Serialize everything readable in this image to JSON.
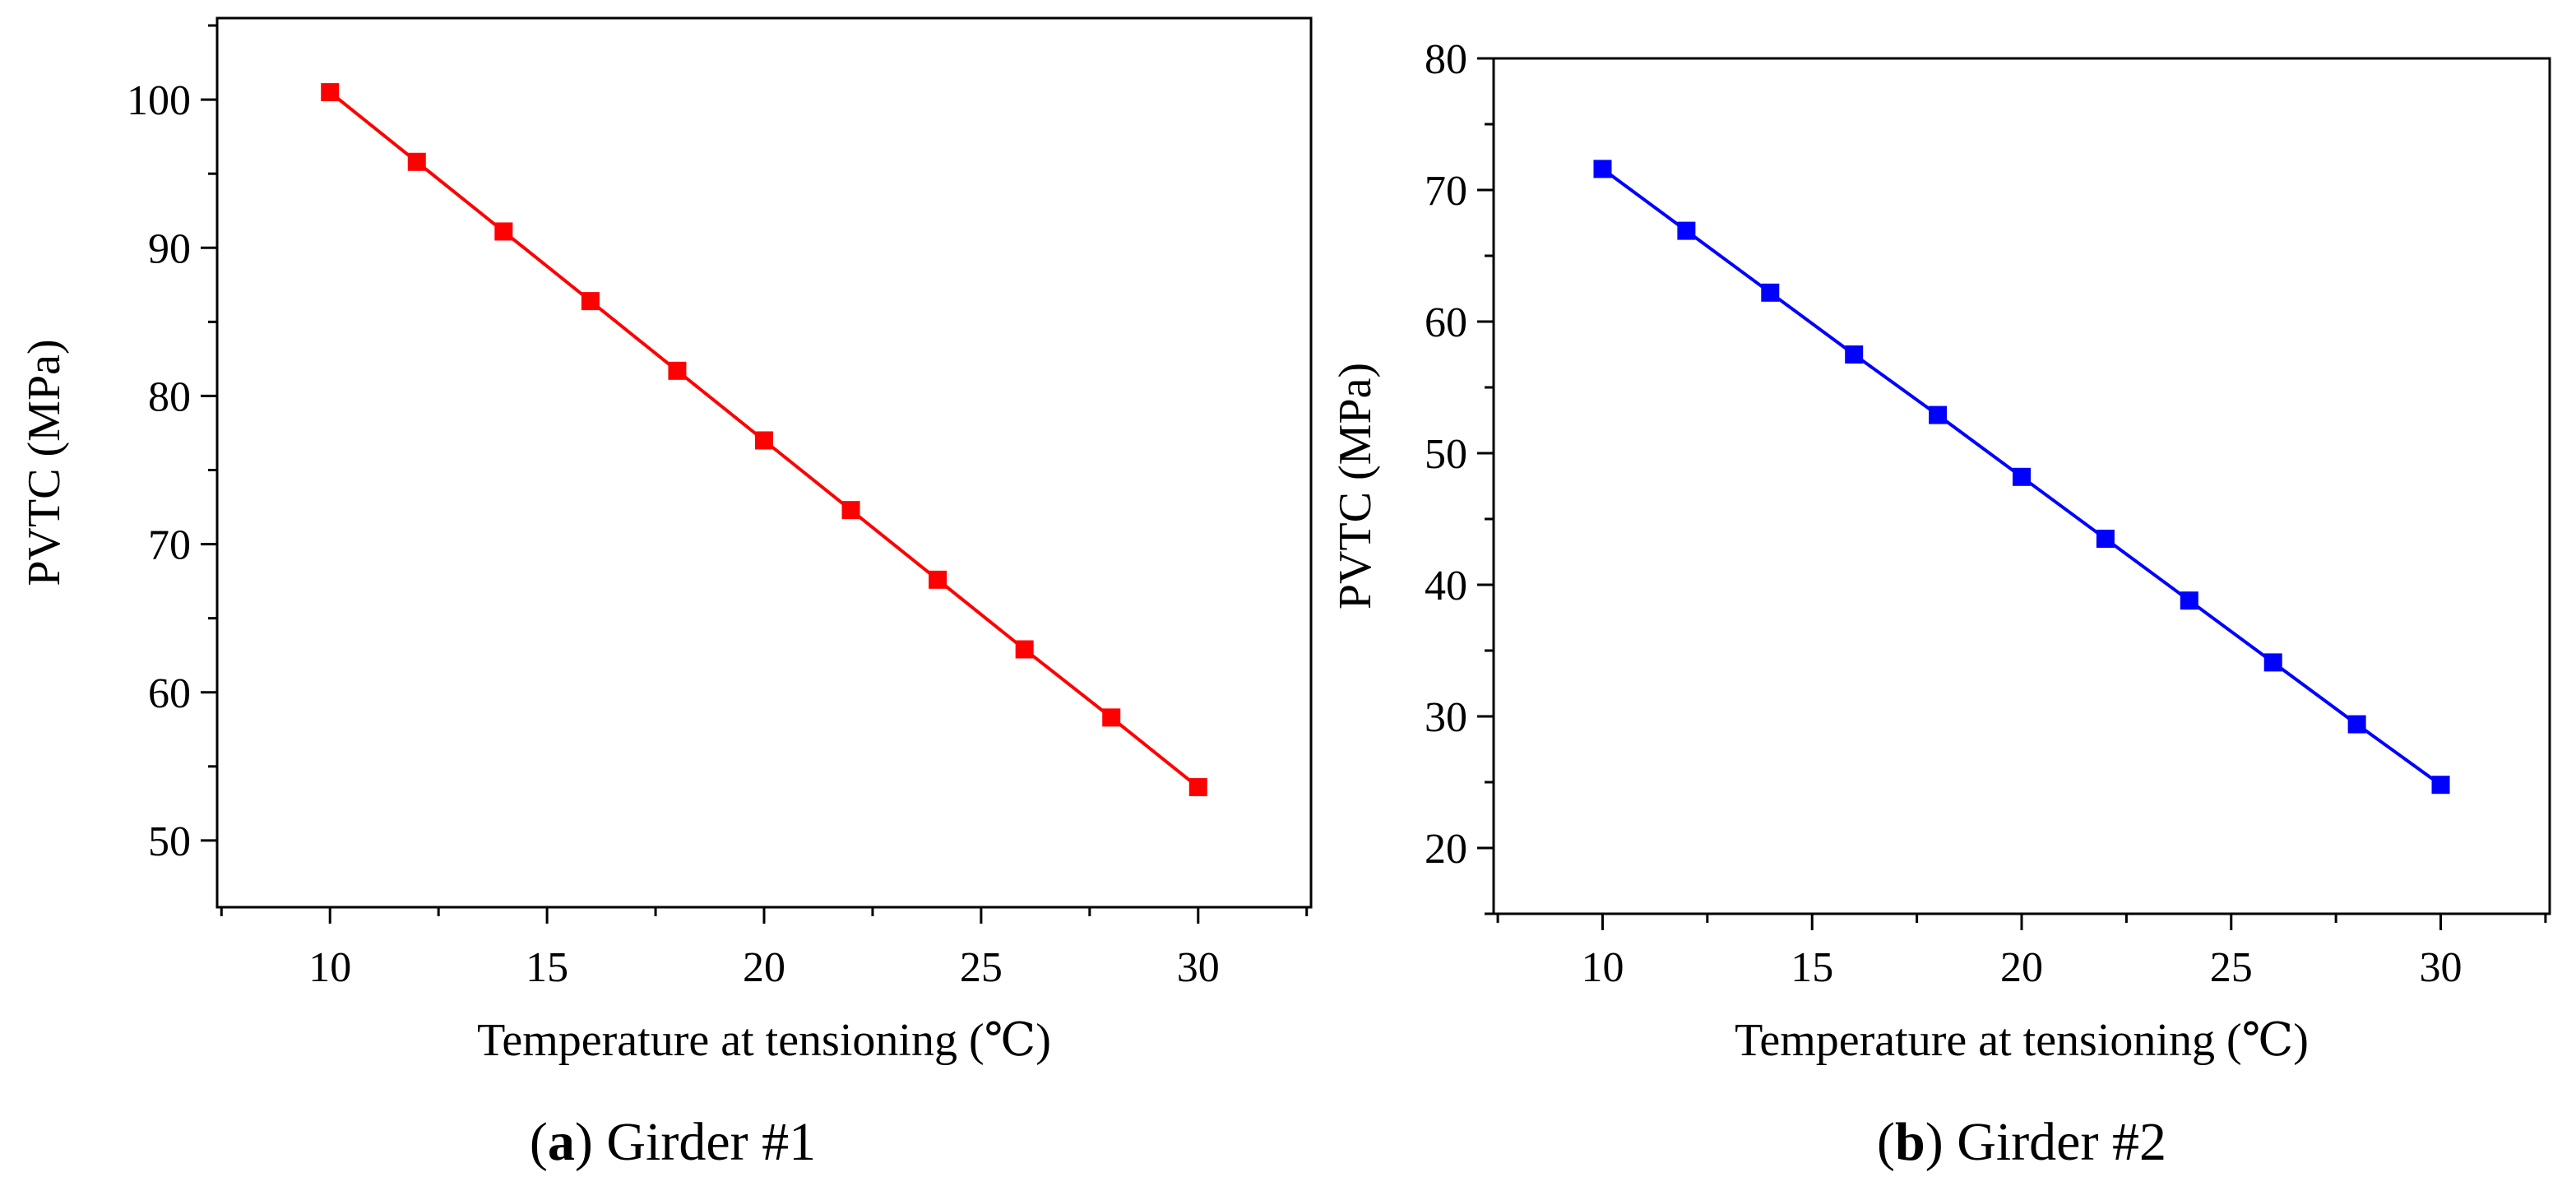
{
  "chart_data": [
    {
      "type": "line",
      "caption_letter": "a",
      "caption_text": " Girder #1",
      "xlabel": "Temperature at tensioning (℃)",
      "ylabel": "PVTC (MPa)",
      "xlim": [
        7.4,
        32.6
      ],
      "ylim": [
        45.5,
        105.5
      ],
      "xticks": [
        10,
        15,
        20,
        25,
        30
      ],
      "yticks": [
        50,
        60,
        70,
        80,
        90,
        100
      ],
      "color": "#ff0000",
      "series": [
        {
          "name": "Girder #1",
          "x": [
            10,
            12,
            14,
            16,
            18,
            20,
            22,
            24,
            26,
            28,
            30
          ],
          "y": [
            100.5,
            95.8,
            91.1,
            86.4,
            81.7,
            77.0,
            72.3,
            67.6,
            62.9,
            58.3,
            53.6
          ]
        }
      ]
    },
    {
      "type": "line",
      "caption_letter": "b",
      "caption_text": " Girder #2",
      "xlabel": "Temperature at tensioning (℃)",
      "ylabel": "PVTC (MPa)",
      "xlim": [
        7.4,
        32.6
      ],
      "ylim": [
        15,
        80
      ],
      "xticks": [
        10,
        15,
        20,
        25,
        30
      ],
      "yticks": [
        20,
        30,
        40,
        50,
        60,
        70,
        80
      ],
      "color": "#0000ff",
      "series": [
        {
          "name": "Girder #2",
          "x": [
            10,
            12,
            14,
            16,
            18,
            20,
            22,
            24,
            26,
            28,
            30
          ],
          "y": [
            71.6,
            66.9,
            62.2,
            57.5,
            52.9,
            48.2,
            43.5,
            38.8,
            34.1,
            29.4,
            24.8
          ]
        }
      ]
    }
  ]
}
